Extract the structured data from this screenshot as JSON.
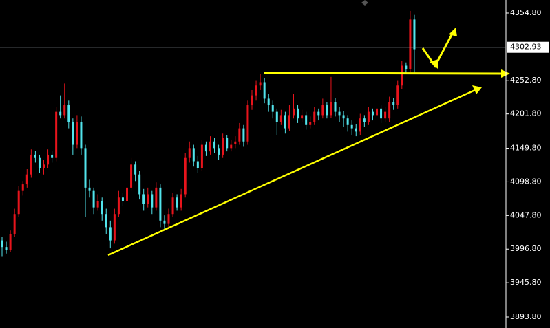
{
  "chart_data": {
    "type": "candlestick",
    "ylim": [
      3877.1,
      4374.6
    ],
    "yticks": [
      {
        "value": 4354.8,
        "label": "4354.80"
      },
      {
        "value": 4252.8,
        "label": "4252.80"
      },
      {
        "value": 4201.8,
        "label": "4201.80"
      },
      {
        "value": 4149.8,
        "label": "4149.80"
      },
      {
        "value": 4098.8,
        "label": "4098.80"
      },
      {
        "value": 4047.8,
        "label": "4047.80"
      },
      {
        "value": 3996.8,
        "label": "3996.80"
      },
      {
        "value": 3945.8,
        "label": "3945.80"
      },
      {
        "value": 3893.8,
        "label": "3893.80"
      }
    ],
    "last_price": 4302.93,
    "up_color": "#e8141c",
    "down_color": "#52e4ec",
    "candles": [
      [
        4010,
        4015,
        3985,
        4000
      ],
      [
        4000,
        4008,
        3990,
        3995
      ],
      [
        3995,
        4025,
        3992,
        4020
      ],
      [
        4020,
        4058,
        4015,
        4050
      ],
      [
        4050,
        4092,
        4045,
        4085
      ],
      [
        4085,
        4100,
        4078,
        4095
      ],
      [
        4095,
        4118,
        4090,
        4110
      ],
      [
        4110,
        4148,
        4105,
        4140
      ],
      [
        4140,
        4146,
        4128,
        4135
      ],
      [
        4135,
        4140,
        4112,
        4120
      ],
      [
        4120,
        4132,
        4110,
        4125
      ],
      [
        4125,
        4148,
        4120,
        4140
      ],
      [
        4140,
        4145,
        4128,
        4135
      ],
      [
        4135,
        4212,
        4130,
        4205
      ],
      [
        4205,
        4230,
        4195,
        4200
      ],
      [
        4200,
        4248,
        4195,
        4215
      ],
      [
        4215,
        4222,
        4180,
        4190
      ],
      [
        4190,
        4195,
        4140,
        4155
      ],
      [
        4155,
        4200,
        4150,
        4190
      ],
      [
        4190,
        4198,
        4140,
        4150
      ],
      [
        4150,
        4155,
        4045,
        4090
      ],
      [
        4090,
        4102,
        4075,
        4085
      ],
      [
        4085,
        4090,
        4050,
        4060
      ],
      [
        4060,
        4080,
        4055,
        4070
      ],
      [
        4070,
        4075,
        4040,
        4050
      ],
      [
        4050,
        4058,
        4020,
        4030
      ],
      [
        4030,
        4040,
        3998,
        4010
      ],
      [
        4010,
        4058,
        4005,
        4050
      ],
      [
        4050,
        4085,
        4045,
        4075
      ],
      [
        4075,
        4082,
        4062,
        4070
      ],
      [
        4070,
        4098,
        4065,
        4090
      ],
      [
        4090,
        4135,
        4085,
        4125
      ],
      [
        4125,
        4130,
        4100,
        4110
      ],
      [
        4110,
        4115,
        4072,
        4080
      ],
      [
        4080,
        4088,
        4055,
        4065
      ],
      [
        4065,
        4090,
        4060,
        4080
      ],
      [
        4080,
        4085,
        4050,
        4060
      ],
      [
        4060,
        4098,
        4055,
        4090
      ],
      [
        4090,
        4095,
        4030,
        4040
      ],
      [
        4040,
        4048,
        4025,
        4035
      ],
      [
        4035,
        4058,
        4030,
        4050
      ],
      [
        4050,
        4082,
        4045,
        4075
      ],
      [
        4075,
        4080,
        4055,
        4060
      ],
      [
        4060,
        4088,
        4055,
        4080
      ],
      [
        4080,
        4142,
        4075,
        4135
      ],
      [
        4135,
        4160,
        4128,
        4150
      ],
      [
        4150,
        4155,
        4122,
        4130
      ],
      [
        4130,
        4138,
        4112,
        4120
      ],
      [
        4120,
        4162,
        4115,
        4155
      ],
      [
        4155,
        4160,
        4138,
        4145
      ],
      [
        4145,
        4168,
        4140,
        4160
      ],
      [
        4160,
        4165,
        4142,
        4150
      ],
      [
        4150,
        4155,
        4132,
        4140
      ],
      [
        4140,
        4172,
        4135,
        4165
      ],
      [
        4165,
        4170,
        4145,
        4150
      ],
      [
        4150,
        4162,
        4145,
        4155
      ],
      [
        4156,
        4168,
        4150,
        4160
      ],
      [
        4160,
        4188,
        4155,
        4180
      ],
      [
        4180,
        4185,
        4152,
        4160
      ],
      [
        4160,
        4222,
        4155,
        4215
      ],
      [
        4215,
        4238,
        4208,
        4230
      ],
      [
        4230,
        4252,
        4222,
        4245
      ],
      [
        4245,
        4262,
        4238,
        4250
      ],
      [
        4250,
        4256,
        4218,
        4225
      ],
      [
        4225,
        4232,
        4205,
        4215
      ],
      [
        4215,
        4222,
        4195,
        4205
      ],
      [
        4205,
        4210,
        4170,
        4190
      ],
      [
        4190,
        4208,
        4185,
        4200
      ],
      [
        4200,
        4205,
        4172,
        4180
      ],
      [
        4180,
        4215,
        4176,
        4200
      ],
      [
        4200,
        4232,
        4195,
        4210
      ],
      [
        4210,
        4215,
        4188,
        4195
      ],
      [
        4195,
        4208,
        4190,
        4200
      ],
      [
        4200,
        4205,
        4178,
        4185
      ],
      [
        4185,
        4198,
        4180,
        4190
      ],
      [
        4190,
        4212,
        4185,
        4205
      ],
      [
        4205,
        4210,
        4192,
        4200
      ],
      [
        4200,
        4225,
        4195,
        4215
      ],
      [
        4215,
        4220,
        4195,
        4200
      ],
      [
        4200,
        4258,
        4196,
        4220
      ],
      [
        4220,
        4226,
        4198,
        4205
      ],
      [
        4205,
        4212,
        4190,
        4200
      ],
      [
        4200,
        4206,
        4182,
        4195
      ],
      [
        4195,
        4200,
        4175,
        4185
      ],
      [
        4185,
        4192,
        4170,
        4180
      ],
      [
        4180,
        4186,
        4168,
        4175
      ],
      [
        4175,
        4202,
        4170,
        4195
      ],
      [
        4195,
        4200,
        4182,
        4190
      ],
      [
        4190,
        4212,
        4185,
        4205
      ],
      [
        4205,
        4210,
        4192,
        4200
      ],
      [
        4200,
        4218,
        4195,
        4210
      ],
      [
        4210,
        4215,
        4188,
        4195
      ],
      [
        4195,
        4212,
        4190,
        4205
      ],
      [
        4195,
        4228,
        4190,
        4220
      ],
      [
        4220,
        4226,
        4208,
        4215
      ],
      [
        4215,
        4252,
        4210,
        4245
      ],
      [
        4245,
        4282,
        4240,
        4275
      ],
      [
        4275,
        4280,
        4262,
        4270
      ],
      [
        4270,
        4358,
        4265,
        4345
      ],
      [
        4345,
        4352,
        4262,
        4300
      ]
    ]
  }
}
